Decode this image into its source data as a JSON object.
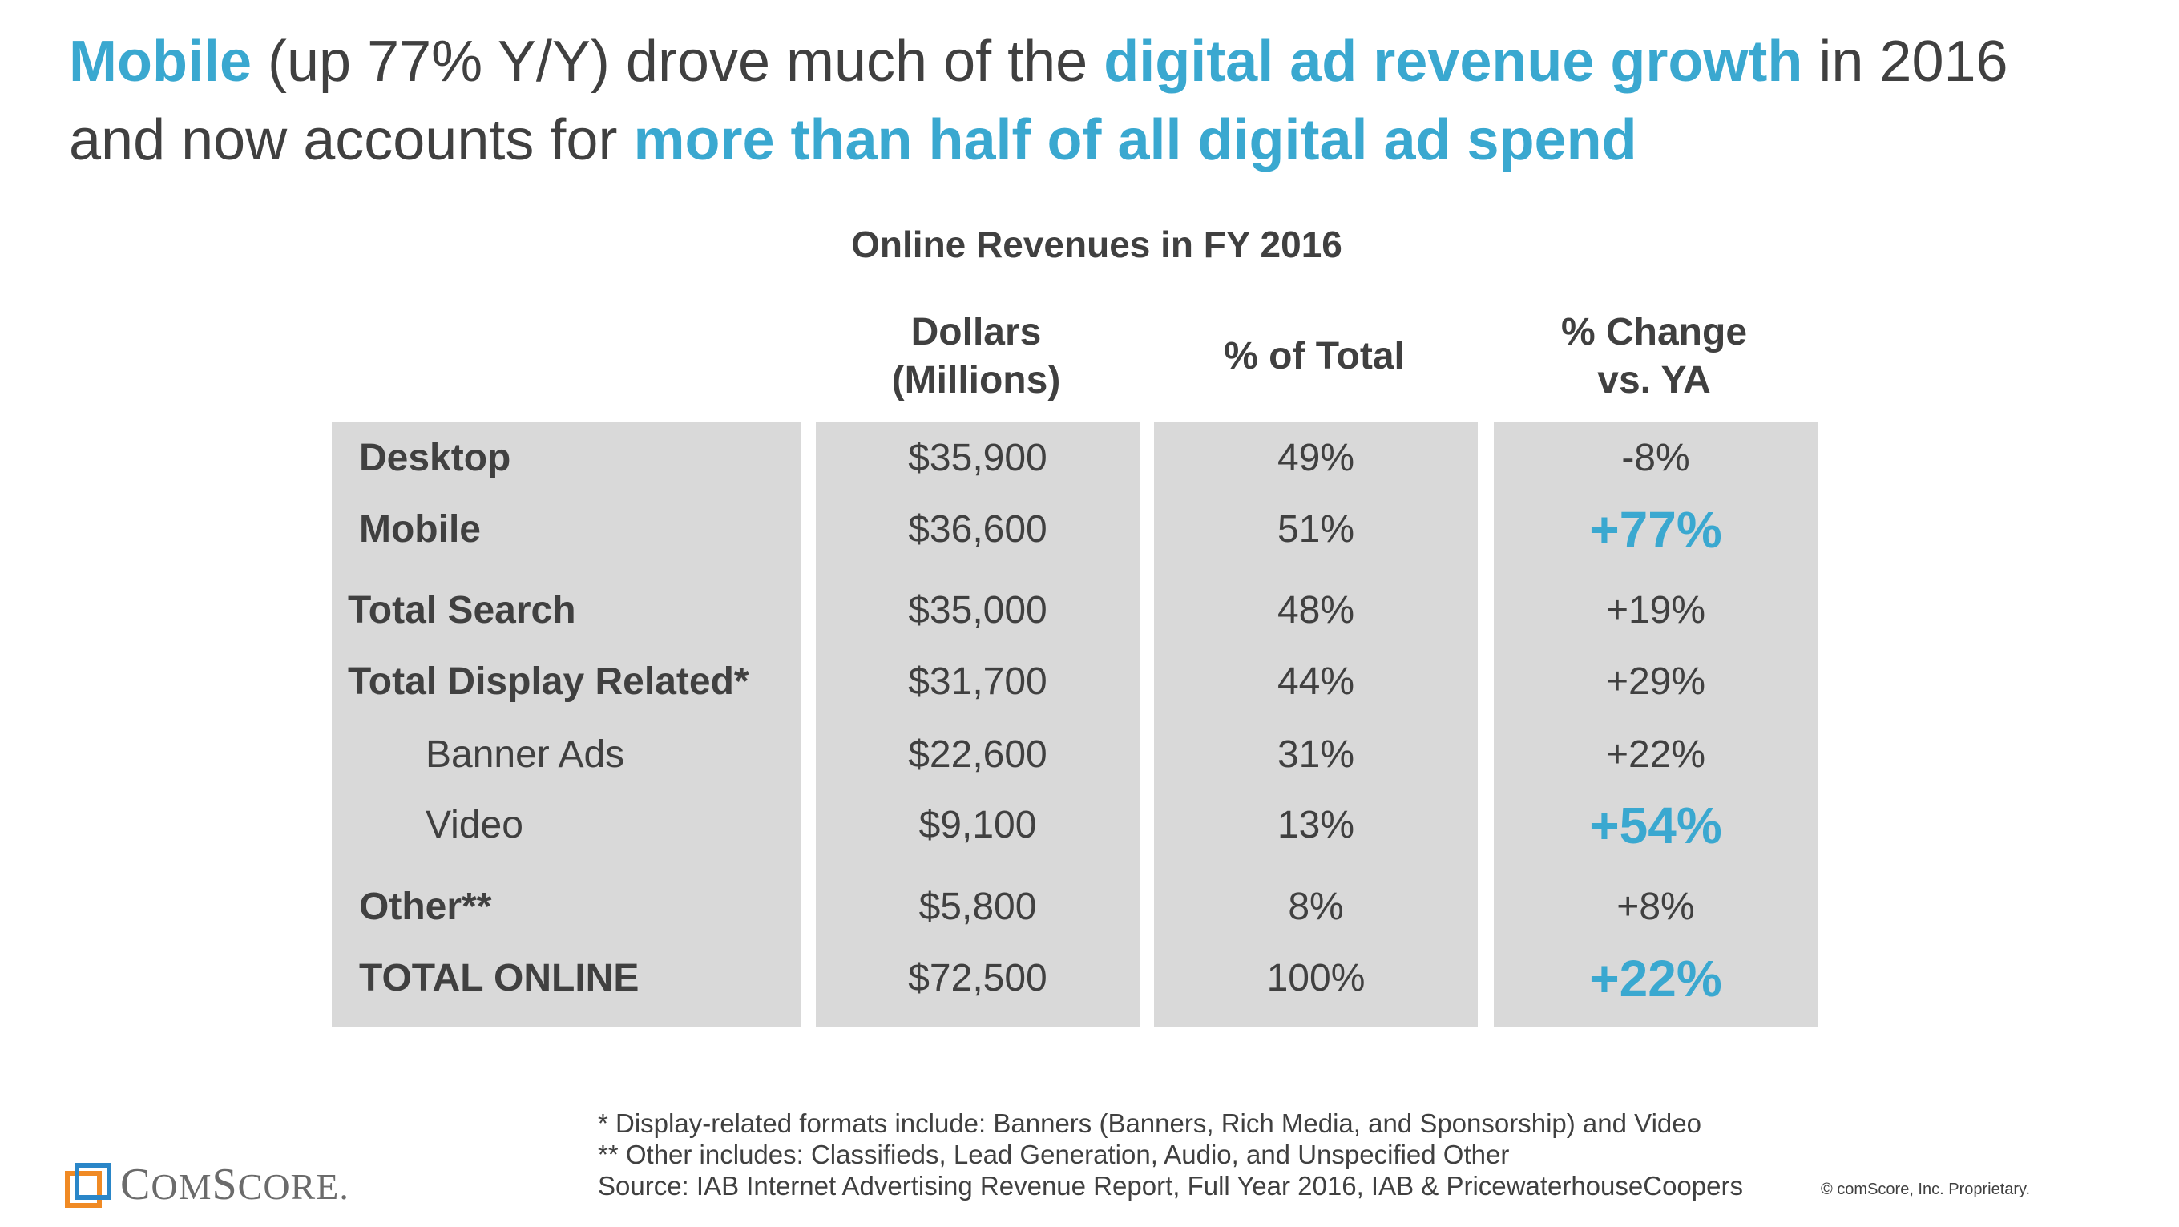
{
  "headline": {
    "line1": [
      {
        "text": "Mobile",
        "highlight": true
      },
      {
        "text": " (up 77% Y/Y) drove much of the ",
        "highlight": false
      },
      {
        "text": "digital ad revenue growth",
        "highlight": true
      },
      {
        "text": " in 2016",
        "highlight": false
      }
    ],
    "line2": [
      {
        "text": "and now accounts for ",
        "highlight": false
      },
      {
        "text": "more than half of all digital ad spend",
        "highlight": true
      }
    ]
  },
  "colors": {
    "accent": "#3aa8d0",
    "text": "#404040",
    "cell_background": "#d9d9d9",
    "logo_orange": "#f08a24",
    "logo_blue": "#2a86c8"
  },
  "chart_data": {
    "type": "table",
    "title": "Online Revenues in FY 2016",
    "columns": [
      "",
      "Dollars (Millions)",
      "% of Total",
      "% Change vs. YA"
    ],
    "column_headers": {
      "dollars": [
        "Dollars",
        "(Millions)"
      ],
      "share": [
        "% of Total"
      ],
      "change": [
        "% Change",
        "vs. YA"
      ]
    },
    "rows": [
      {
        "label": "Desktop",
        "dollars": "$35,900",
        "share": "49%",
        "change": "-8%",
        "bold": true,
        "level": 1,
        "highlight_change": false
      },
      {
        "label": "Mobile",
        "dollars": "$36,600",
        "share": "51%",
        "change": "+77%",
        "bold": true,
        "level": 1,
        "highlight_change": true
      },
      {
        "label": "Total Search",
        "dollars": "$35,000",
        "share": "48%",
        "change": "+19%",
        "bold": true,
        "level": 0,
        "highlight_change": false
      },
      {
        "label": "Total Display Related*",
        "dollars": "$31,700",
        "share": "44%",
        "change": "+29%",
        "bold": true,
        "level": 0,
        "highlight_change": false
      },
      {
        "label": "Banner Ads",
        "dollars": "$22,600",
        "share": "31%",
        "change": "+22%",
        "bold": false,
        "level": 2,
        "highlight_change": false
      },
      {
        "label": "Video",
        "dollars": "$9,100",
        "share": "13%",
        "change": "+54%",
        "bold": false,
        "level": 2,
        "highlight_change": true
      },
      {
        "label": "Other**",
        "dollars": "$5,800",
        "share": "8%",
        "change": "+8%",
        "bold": true,
        "level": 1,
        "highlight_change": false
      },
      {
        "label": "TOTAL ONLINE",
        "dollars": "$72,500",
        "share": "100%",
        "change": "+22%",
        "bold": true,
        "level": 1,
        "highlight_change": true
      }
    ]
  },
  "footnotes": {
    "display": "*   Display-related formats include: Banners (Banners, Rich Media, and Sponsorship) and Video",
    "other": "** Other includes: Classifieds, Lead Generation, Audio, and Unspecified Other",
    "source": "Source: IAB Internet Advertising Revenue Report, Full Year 2016, IAB & PricewaterhouseCoopers"
  },
  "copyright": "© comScore, Inc. Proprietary.",
  "logo": {
    "text_big_c": "C",
    "text_om": "OM",
    "text_big_s": "S",
    "text_core": "CORE",
    "suffix": ".",
    "icon": "comscore-logo-icon"
  }
}
